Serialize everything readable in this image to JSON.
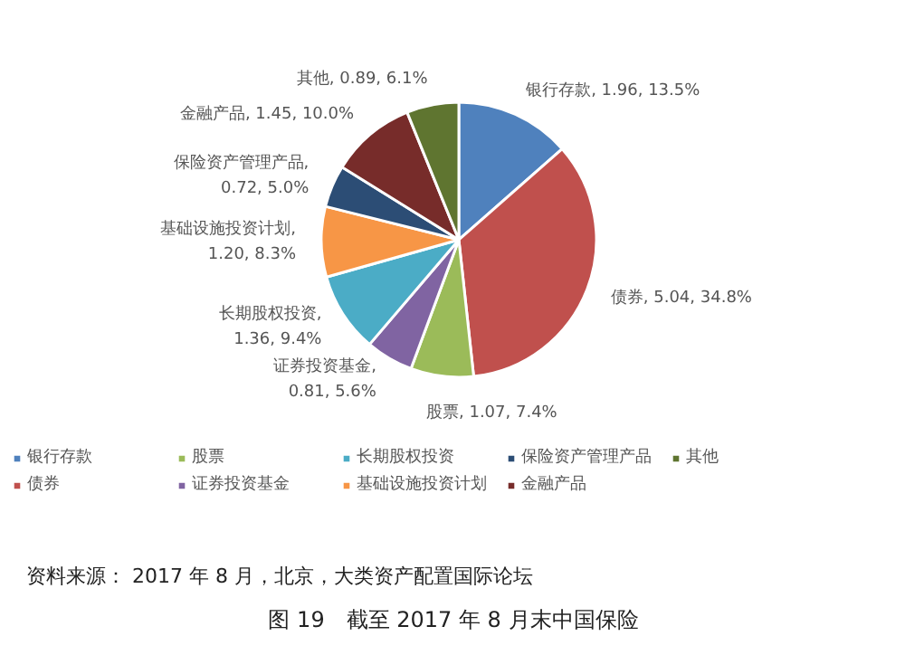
{
  "chart_data": {
    "type": "pie",
    "categories": [
      "银行存款",
      "债券",
      "股票",
      "证券投资基金",
      "长期股权投资",
      "基础设施投资计划",
      "保险资产管理产品",
      "金融产品",
      "其他"
    ],
    "values": [
      1.96,
      5.04,
      1.07,
      0.81,
      1.36,
      1.2,
      0.72,
      1.45,
      0.89
    ],
    "colors": [
      "#4f81bd",
      "#c0504d",
      "#9bbb59",
      "#8064a2",
      "#4bacc6",
      "#f79646",
      "#2c4d75",
      "#772c2a",
      "#5f7530"
    ],
    "value_labels": [
      "银行存款, 1.96, 13.5%",
      "债券, 5.04, 34.8%",
      "股票, 1.07, 7.4%",
      "证券投资基金, 0.81, 5.6%",
      "长期股权投资, 1.36, 9.4%",
      "基础设施投资计划, 1.20, 8.3%",
      "保险资产管理产品, 0.72, 5.0%",
      "金融产品, 1.45, 10.0%",
      "其他, 0.89, 6.1%"
    ],
    "legend": "bottom",
    "annotations": [
      "资料来源： 2017 年 8 月，北京，大类资产配置国际论坛",
      "图 19　截至 2017 年 8 月末中国保险"
    ]
  }
}
